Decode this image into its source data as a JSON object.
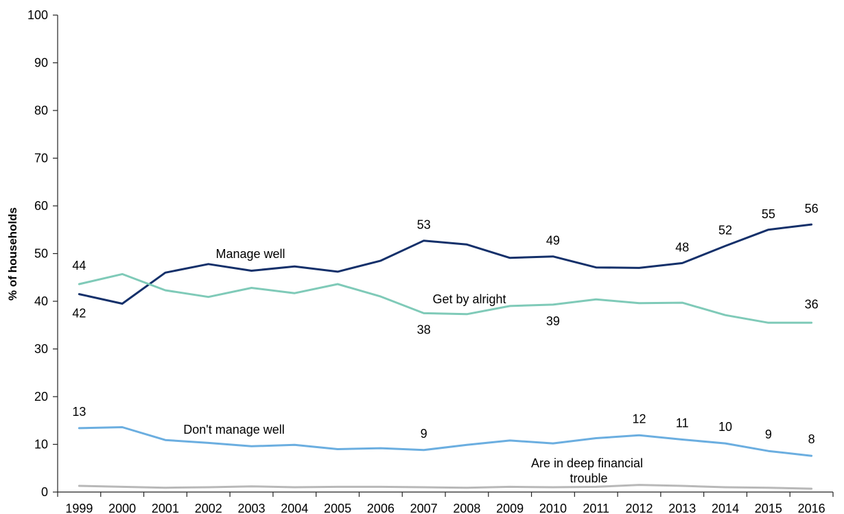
{
  "chart_data": {
    "type": "line",
    "ylabel": "% of households",
    "xlabel": "",
    "ylim": [
      0,
      100
    ],
    "yticks": [
      0,
      10,
      20,
      30,
      40,
      50,
      60,
      70,
      80,
      90,
      100
    ],
    "grid": false,
    "categories": [
      "1999",
      "2000",
      "2001",
      "2002",
      "2003",
      "2004",
      "2005",
      "2006",
      "2007",
      "2008",
      "2009",
      "2010",
      "2011",
      "2012",
      "2013",
      "2014",
      "2015",
      "2016"
    ],
    "series": [
      {
        "name": "Manage well",
        "color": "#14306a",
        "values": [
          41.5,
          39.5,
          46,
          47.8,
          46.4,
          47.3,
          46.2,
          48.5,
          52.7,
          51.9,
          49.1,
          49.4,
          47.1,
          47,
          48,
          51.6,
          55,
          56.1
        ],
        "point_labels": [
          {
            "i": 0,
            "text": "42"
          },
          {
            "i": 8,
            "text": "53"
          },
          {
            "i": 11,
            "text": "49"
          },
          {
            "i": 14,
            "text": "48"
          },
          {
            "i": 15,
            "text": "52"
          },
          {
            "i": 16,
            "text": "55"
          },
          {
            "i": 17,
            "text": "56"
          }
        ]
      },
      {
        "name": "Get by alright",
        "color": "#7fcab8",
        "values": [
          43.6,
          45.7,
          42.3,
          40.9,
          42.8,
          41.7,
          43.6,
          41,
          37.5,
          37.3,
          39,
          39.3,
          40.4,
          39.6,
          39.7,
          37.1,
          35.5,
          35.5
        ],
        "point_labels": [
          {
            "i": 0,
            "text": "44"
          },
          {
            "i": 8,
            "text": "38"
          },
          {
            "i": 11,
            "text": "39"
          },
          {
            "i": 17,
            "text": "36"
          }
        ]
      },
      {
        "name": "Don't manage well",
        "color": "#6baee0",
        "values": [
          13.4,
          13.6,
          10.9,
          10.3,
          9.6,
          9.9,
          9,
          9.2,
          8.8,
          9.9,
          10.8,
          10.2,
          11.3,
          11.9,
          11,
          10.2,
          8.6,
          7.6
        ],
        "point_labels": [
          {
            "i": 0,
            "text": "13"
          },
          {
            "i": 8,
            "text": "9"
          },
          {
            "i": 13,
            "text": "12"
          },
          {
            "i": 14,
            "text": "11"
          },
          {
            "i": 15,
            "text": "10"
          },
          {
            "i": 16,
            "text": "9"
          },
          {
            "i": 17,
            "text": "8"
          }
        ]
      },
      {
        "name": "Are in deep financial trouble",
        "color": "#b8b8b8",
        "values": [
          1.3,
          1.1,
          0.9,
          1,
          1.2,
          1,
          1.1,
          1.1,
          1,
          0.9,
          1.1,
          1,
          1.1,
          1.5,
          1.3,
          1,
          0.9,
          0.7
        ],
        "point_labels": []
      }
    ]
  }
}
